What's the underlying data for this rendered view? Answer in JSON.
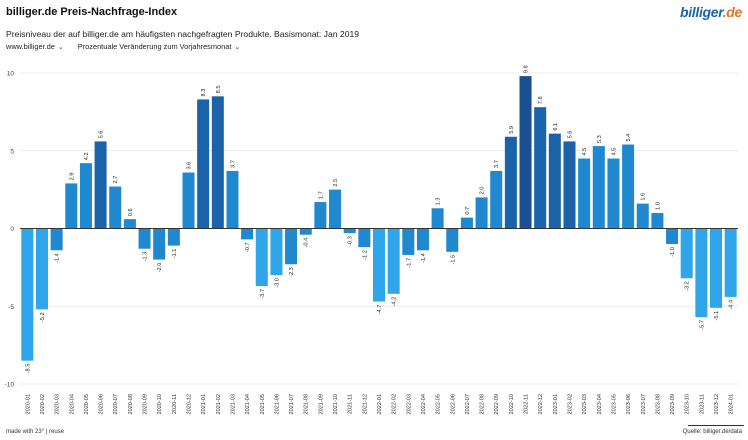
{
  "header": {
    "title": "billiger.de Preis-Nachfrage-Index",
    "logo_part1": "billiger",
    "logo_part2": ".de",
    "subtitle": "Preisniveau der auf billiger.de am häufigsten nachgefragten Produkte. Basismonat: Jan 2019"
  },
  "controls": {
    "source_select": "www.billiger.de",
    "metric_select": "Prozentuale Veränderung zum Vorjahresmonat"
  },
  "footer": {
    "made_with": "made with 23° | reuse",
    "source": "Quelle: billiger.de/data"
  },
  "colors": {
    "light": "#2fa6ea",
    "mid": "#1f88cf",
    "dark": "#1b63a8",
    "darkest": "#1a4f92",
    "gridline": "#e6e6e6",
    "zeroline": "#333333"
  },
  "chart_data": {
    "type": "bar",
    "title": "billiger.de Preis-Nachfrage-Index",
    "xlabel": "",
    "ylabel": "",
    "ylim": [
      -10,
      10
    ],
    "yticks": [
      -10,
      -5,
      0,
      5,
      10
    ],
    "grid": true,
    "categories": [
      "2020-01",
      "2020-02",
      "2020-03",
      "2020-04",
      "2020-05",
      "2020-06",
      "2020-07",
      "2020-08",
      "2020-09",
      "2020-10",
      "2020-11",
      "2020-12",
      "2021-01",
      "2021-02",
      "2021-03",
      "2021-04",
      "2021-05",
      "2021-06",
      "2021-07",
      "2021-08",
      "2021-09",
      "2021-10",
      "2021-11",
      "2021-12",
      "2022-01",
      "2022-02",
      "2022-03",
      "2022-04",
      "2022-05",
      "2022-06",
      "2022-07",
      "2022-08",
      "2022-09",
      "2022-10",
      "2022-11",
      "2022-12",
      "2023-01",
      "2023-02",
      "2023-03",
      "2023-04",
      "2023-05",
      "2023-06",
      "2023-07",
      "2023-08",
      "2023-09",
      "2023-10",
      "2023-11",
      "2023-12",
      "2024-01"
    ],
    "values": [
      -8.5,
      -5.2,
      -1.4,
      2.9,
      4.2,
      5.6,
      2.7,
      0.6,
      -1.3,
      -2.0,
      -1.1,
      3.6,
      8.3,
      8.5,
      3.7,
      -0.7,
      -3.7,
      -3.0,
      -2.3,
      -0.4,
      1.7,
      2.5,
      -0.3,
      -1.2,
      -4.7,
      -4.2,
      -1.7,
      -1.4,
      1.3,
      -1.5,
      0.7,
      2.0,
      3.7,
      5.9,
      9.8,
      7.8,
      6.1,
      5.6,
      4.5,
      5.3,
      4.5,
      5.4,
      1.6,
      1.0,
      -1.0,
      -3.2,
      -5.7,
      -5.1,
      -4.4
    ],
    "labels": [
      "-8.5",
      "-5.2",
      "-1.4",
      "2.9",
      "4.2",
      "5.6",
      "2.7",
      "0.6",
      "-1.3",
      "-2.0",
      "-1.1",
      "3.6",
      "8.3",
      "8.5",
      "3.7",
      "-0.7",
      "-3.7",
      "-3.0",
      "-2.3",
      "-0.4",
      "1.7",
      "2.5",
      "-0.3",
      "-1.2",
      "-4.7",
      "-4.2",
      "-1.7",
      "-1.4",
      "1.3",
      "-1.5",
      "0.7",
      "2.0",
      "3.7",
      "5.9",
      "9.8",
      "7.8",
      "6.1",
      "5.6",
      "4.5",
      "5.3",
      "4.5",
      "5.4",
      "1.6",
      "1.0",
      "-1.0",
      "-3.2",
      "-5.7",
      "-5.1",
      "-4.4"
    ]
  }
}
